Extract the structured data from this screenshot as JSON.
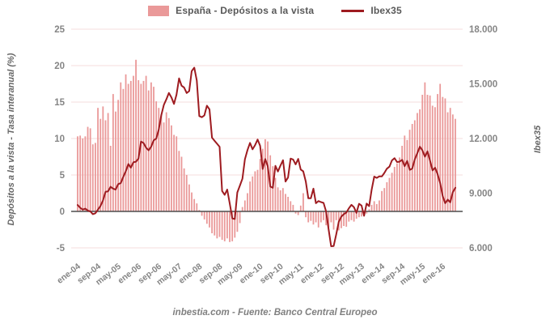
{
  "legend": {
    "bars_label": "España - Depósitos a la vista",
    "line_label": "Ibex35"
  },
  "axes": {
    "left_title": "Depósitos a la vista - Tasa interanual (%)",
    "right_title": "Ibex35",
    "left_ticks": [
      25,
      20,
      15,
      10,
      5,
      0,
      -5
    ],
    "right_ticks": [
      "18.000",
      "15.000",
      "12.000",
      "9.000",
      "6.000"
    ],
    "right_tick_values": [
      18000,
      15000,
      12000,
      9000,
      6000
    ],
    "x_ticks": [
      "ene-04",
      "sep-04",
      "may-05",
      "ene-06",
      "sep-06",
      "may-07",
      "ene-08",
      "sep-08",
      "may-09",
      "ene-10",
      "sep-10",
      "may-11",
      "ene-12",
      "sep-12",
      "may-13",
      "ene-14",
      "sep-14",
      "may-15",
      "ene-16"
    ],
    "x_tick_month_index": [
      0,
      8,
      16,
      24,
      32,
      40,
      48,
      56,
      64,
      72,
      80,
      88,
      96,
      104,
      112,
      120,
      128,
      136,
      144
    ]
  },
  "footer": {
    "text": "inbestia.com - Fuente: Banco Central Europeo"
  },
  "colors": {
    "bar": "#ea9999",
    "line": "#9e1b20",
    "grid": "#f6dcdc",
    "zero_line": "#4d4d4d",
    "axis_text": "#858585",
    "legend_text": "#595959"
  },
  "chart_data": {
    "type": "combo",
    "x_frequency": "monthly",
    "x_range": [
      "2004-01",
      "2016-06"
    ],
    "grid": true,
    "legend_position": "top",
    "left_axis": {
      "label": "Depósitos a la vista - Tasa interanual (%)",
      "min": -5,
      "max": 25
    },
    "right_axis": {
      "label": "Ibex35",
      "min": 6000,
      "max": 18000
    },
    "series": [
      {
        "name": "España - Depósitos a la vista",
        "type": "bar",
        "axis": "left",
        "unit": "%",
        "values": [
          10.3,
          10.4,
          10.0,
          10.3,
          11.6,
          11.4,
          9.2,
          9.4,
          14.2,
          12.7,
          14.4,
          12.5,
          13.5,
          9.0,
          16.1,
          13.7,
          15.3,
          17.7,
          16.8,
          18.8,
          17.5,
          17.9,
          18.6,
          20.8,
          18.0,
          17.5,
          17.9,
          18.6,
          16.6,
          17.7,
          17.1,
          15.1,
          14.2,
          13.3,
          12.2,
          13.6,
          12.8,
          11.8,
          10.5,
          10.3,
          8.3,
          7.5,
          5.9,
          5.0,
          3.7,
          2.6,
          1.7,
          1.1,
          0.2,
          -0.6,
          -1.1,
          -1.7,
          -2.2,
          -3.0,
          -3.3,
          -3.7,
          -3.5,
          -3.9,
          -4.1,
          -3.7,
          -4.2,
          -4.1,
          -3.6,
          -2.8,
          -1.6,
          0.6,
          1.5,
          2.5,
          4.1,
          4.8,
          5.5,
          5.7,
          7.2,
          8.6,
          9.9,
          9.6,
          7.7,
          6.2,
          4.6,
          3.3,
          2.9,
          3.2,
          2.4,
          2.0,
          1.4,
          0.9,
          -0.3,
          -0.5,
          0.8,
          2.5,
          -0.8,
          -1.5,
          -1.3,
          -1.8,
          -1.5,
          -2.2,
          -1.5,
          -1.2,
          -1.9,
          -2.2,
          -1.5,
          -2.5,
          -1.2,
          -2.6,
          -2.3,
          -2.0,
          -2.1,
          -1.4,
          -1.2,
          -1.4,
          -1.0,
          -0.8,
          -0.7,
          -0.5,
          -0.3,
          0.3,
          0.9,
          1.4,
          1.0,
          1.5,
          2.8,
          3.2,
          4.0,
          4.6,
          5.3,
          6.1,
          6.6,
          7.4,
          9.0,
          10.4,
          9.8,
          11.2,
          12.0,
          12.5,
          13.5,
          14.0,
          16.0,
          17.7,
          16.0,
          15.9,
          14.5,
          14.3,
          16.1,
          17.5,
          15.7,
          15.5,
          13.6,
          14.2,
          13.3,
          12.7
        ]
      },
      {
        "name": "Ibex35",
        "type": "line",
        "axis": "right",
        "unit": "index points",
        "values": [
          8350,
          8200,
          8100,
          8150,
          8050,
          8000,
          7850,
          7900,
          8100,
          8300,
          8600,
          9080,
          9100,
          9350,
          9250,
          9200,
          9500,
          9550,
          9900,
          10200,
          10600,
          10400,
          10700,
          10730,
          10900,
          11830,
          11750,
          11500,
          11350,
          11550,
          11900,
          12000,
          12500,
          13280,
          13850,
          14150,
          14500,
          14250,
          13900,
          14400,
          15300,
          14900,
          14800,
          14500,
          14600,
          15700,
          15890,
          15180,
          13230,
          13170,
          13270,
          13800,
          13600,
          12050,
          11880,
          11710,
          11540,
          9120,
          8910,
          9200,
          8450,
          7620,
          7580,
          9040,
          9420,
          9790,
          10860,
          11370,
          11760,
          11410,
          11640,
          11940,
          11600,
          10330,
          10870,
          10490,
          9360,
          9300,
          10500,
          10190,
          10510,
          10810,
          9640,
          9860,
          10900,
          10850,
          10580,
          10880,
          10300,
          10200,
          9630,
          8720,
          8720,
          9250,
          8450,
          8570,
          8510,
          8470,
          8010,
          7010,
          6090,
          6100,
          6740,
          7420,
          7710,
          7850,
          7940,
          8170,
          8360,
          8230,
          7920,
          8420,
          8320,
          7760,
          8430,
          8290,
          9190,
          9910,
          9840,
          9920,
          9920,
          10110,
          10340,
          10460,
          10800,
          10920,
          10710,
          10730,
          10830,
          10480,
          10770,
          10280,
          10350,
          10850,
          11200,
          11550,
          11350,
          11000,
          11300,
          10800,
          10250,
          10400,
          10050,
          9550,
          8850,
          8450,
          8650,
          8500,
          9050,
          9300
        ]
      }
    ]
  }
}
